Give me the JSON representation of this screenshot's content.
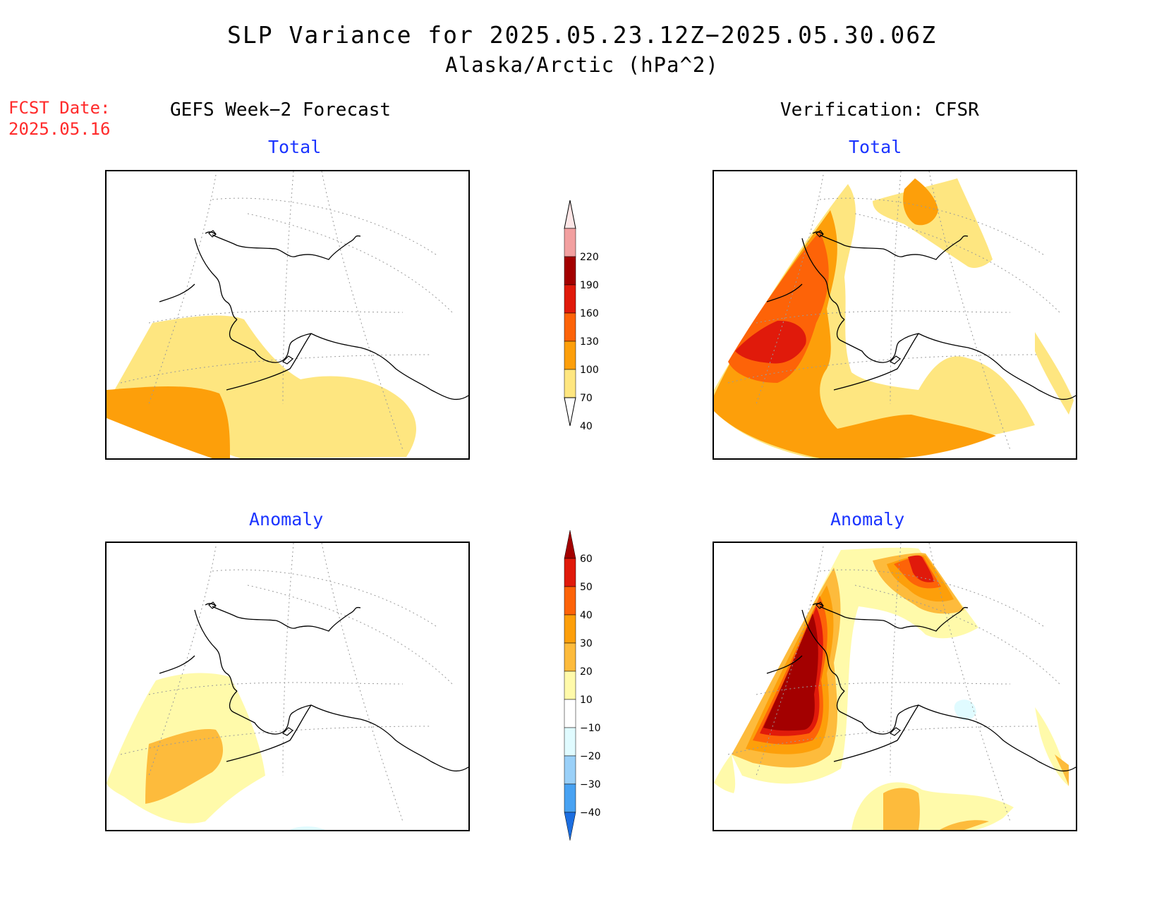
{
  "title": "SLP Variance for 2025.05.23.12Z−2025.05.30.06Z",
  "subtitle": "Alaska/Arctic (hPa^2)",
  "fcst_date": {
    "line1": "FCST Date:",
    "line2": "2025.05.16"
  },
  "columns": {
    "left": "GEFS Week−2 Forecast",
    "right": "Verification: CFSR"
  },
  "panels": {
    "tl": "Total",
    "tr": "Total",
    "bl": "Anomaly",
    "br": "Anomaly"
  },
  "total_colorbar": {
    "levels": [
      "40",
      "70",
      "100",
      "130",
      "160",
      "190",
      "220"
    ],
    "colors": [
      "#fee680",
      "#fd9f0a",
      "#fd6308",
      "#e01a0b",
      "#a30000",
      "#f2a0a0",
      "#fde6e6"
    ]
  },
  "anomaly_colorbar": {
    "levels": [
      "60",
      "50",
      "40",
      "30",
      "20",
      "10",
      "−10",
      "−20",
      "−30",
      "−40"
    ],
    "colors": [
      "#a30000",
      "#e01a0b",
      "#fd6308",
      "#fd9f0a",
      "#fdbb3c",
      "#fffaaa",
      "#ffffff",
      "#e0fbff",
      "#9ad0f8",
      "#48a2f2",
      "#1c6ee0"
    ]
  },
  "shading": {
    "c40": "#fee680",
    "c70": "#fd9f0a",
    "c100": "#fd6308",
    "c130": "#e01a0b",
    "a10": "#fffaaa",
    "a20": "#fdbb3c",
    "a30": "#fd9f0a",
    "a40": "#fd6308",
    "a50": "#e01a0b",
    "a60": "#a30000",
    "neg10": "#e0fbff"
  }
}
